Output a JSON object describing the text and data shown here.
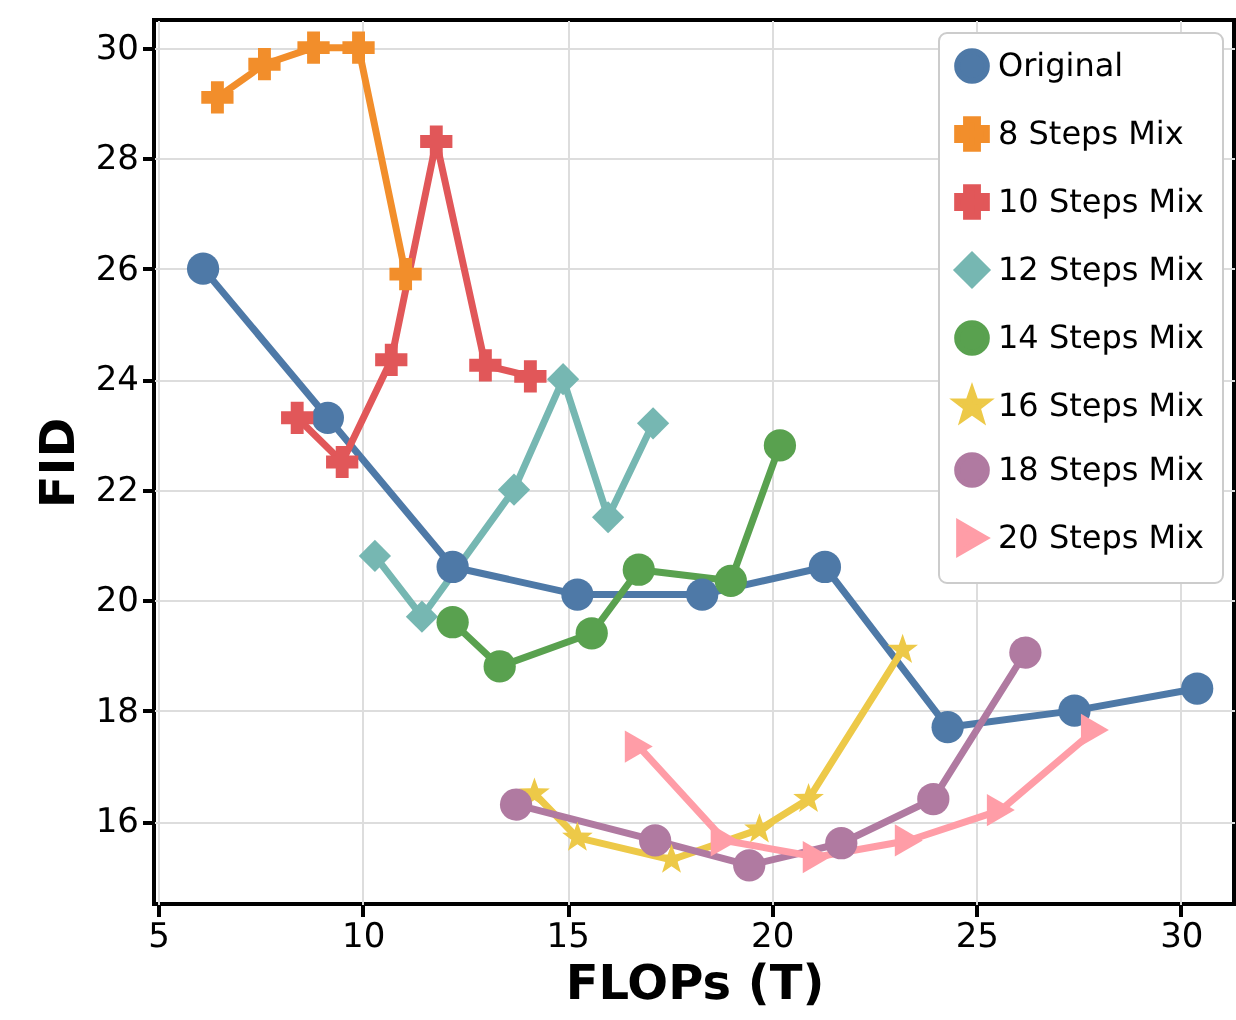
{
  "chart_data": {
    "type": "line",
    "xlabel": "FLOPs (T)",
    "ylabel": "FID",
    "xlim": [
      4.9,
      31.3
    ],
    "ylim": [
      14.5,
      30.5
    ],
    "xticks": [
      5,
      10,
      15,
      20,
      25,
      30
    ],
    "yticks": [
      16,
      18,
      20,
      22,
      24,
      26,
      28,
      30
    ],
    "grid": true,
    "legend": "top right",
    "series": [
      {
        "name": "Original",
        "color": "#4e79a7",
        "marker": "circle",
        "x": [
          6.1,
          9.15,
          12.2,
          15.25,
          18.3,
          21.3,
          24.3,
          27.4,
          30.4
        ],
        "values": [
          26.0,
          23.3,
          20.6,
          20.1,
          20.1,
          20.6,
          17.7,
          18.0,
          18.4
        ]
      },
      {
        "name": "8 Steps Mix",
        "color": "#f28e2b",
        "marker": "cross",
        "x": [
          6.45,
          7.6,
          8.8,
          9.9,
          11.05
        ],
        "values": [
          29.1,
          29.7,
          30.0,
          30.0,
          25.9
        ]
      },
      {
        "name": "10 Steps Mix",
        "color": "#e15759",
        "marker": "cross",
        "x": [
          8.4,
          9.5,
          10.7,
          11.8,
          13.0,
          14.1
        ],
        "values": [
          23.3,
          22.5,
          24.35,
          28.3,
          24.25,
          24.05
        ]
      },
      {
        "name": "12 Steps Mix",
        "color": "#76b7b2",
        "marker": "diamond",
        "x": [
          10.3,
          11.45,
          13.7,
          14.9,
          16.0,
          17.1
        ],
        "values": [
          20.8,
          19.7,
          22.0,
          24.0,
          21.5,
          23.2
        ]
      },
      {
        "name": "14 Steps Mix",
        "color": "#59a14f",
        "marker": "circle",
        "x": [
          12.2,
          13.35,
          15.6,
          16.75,
          19.0,
          20.2
        ],
        "values": [
          19.6,
          18.8,
          19.4,
          20.55,
          20.35,
          22.8
        ]
      },
      {
        "name": "16 Steps Mix",
        "color": "#edc948",
        "marker": "star",
        "x": [
          14.2,
          15.25,
          17.55,
          19.7,
          20.9,
          23.2
        ],
        "values": [
          16.5,
          15.7,
          15.3,
          15.85,
          16.4,
          19.1
        ]
      },
      {
        "name": "18 Steps Mix",
        "color": "#b07aa1",
        "marker": "circle",
        "x": [
          13.75,
          17.15,
          19.45,
          21.7,
          23.95,
          26.2
        ],
        "values": [
          16.3,
          15.65,
          15.2,
          15.6,
          16.4,
          19.05
        ]
      },
      {
        "name": "20 Steps Mix",
        "color": "#ff9da7",
        "marker": "triangle",
        "x": [
          16.75,
          18.85,
          21.1,
          23.35,
          25.6,
          27.9
        ],
        "values": [
          17.35,
          15.65,
          15.35,
          15.65,
          16.2,
          17.65
        ]
      }
    ]
  }
}
